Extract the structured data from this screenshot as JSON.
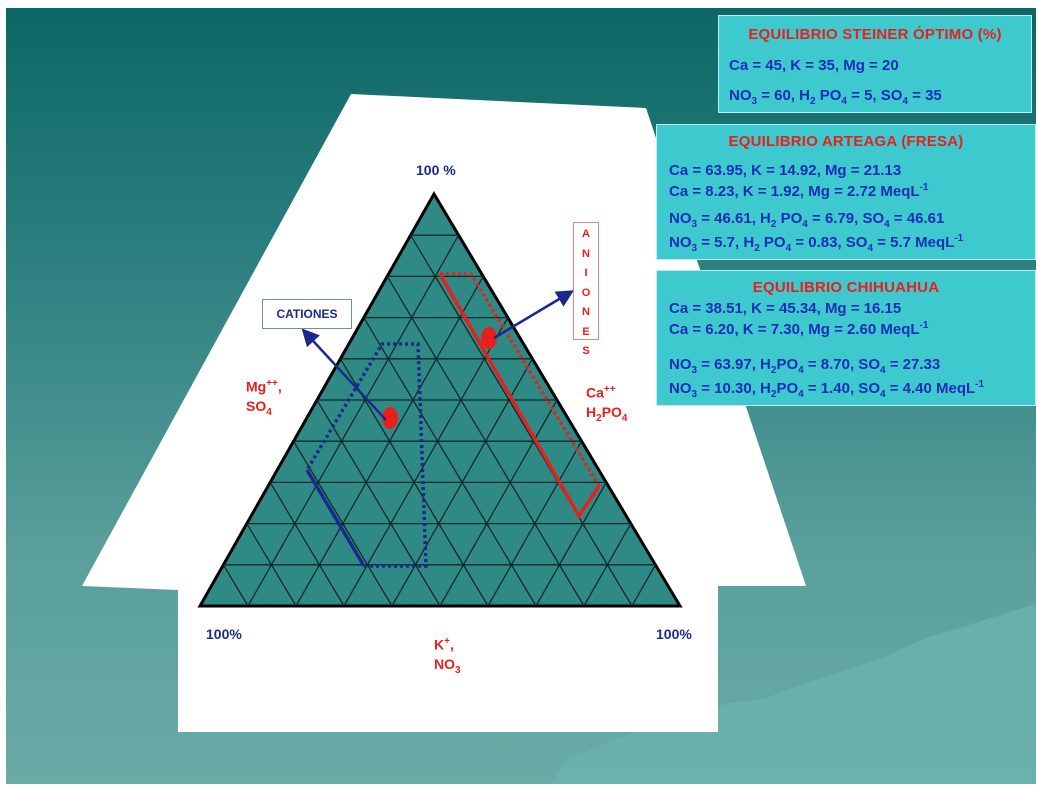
{
  "diagram": {
    "apex_top_label": "100 %",
    "corner_left_label": "100%",
    "corner_right_label": "100%",
    "bottom_label": {
      "base": "K",
      "sup": "+",
      "sep": ",",
      "line2_base": "NO",
      "line2_sub": "3"
    },
    "left_label": {
      "base": "Mg",
      "sup": "++",
      "sep": ",",
      "line2_base": "SO",
      "line2_sub": "4"
    },
    "right_label": {
      "base": "Ca",
      "sup": "++",
      "line2_base": "H",
      "line2_sub": "2",
      "line2_tail": "PO",
      "line2_sub2": "4"
    },
    "cationes_label": "CATIONES",
    "aniones_letters": [
      "A",
      "N",
      "I",
      "O",
      "N",
      "E",
      "S"
    ],
    "colors": {
      "triangle_fill": "#2f8a86",
      "cation_outline": "#1a2a8c",
      "anion_outline": "#e8201c",
      "point": "#e8201c"
    },
    "grid_divisions": 10
  },
  "steiner": {
    "title": "EQUILIBRIO STEINER ÓPTIMO (%)",
    "line1": "Ca = 45, K = 35, Mg = 20",
    "line2": {
      "a": "NO",
      "a_sub": "3",
      "a_val": " = 60,  H",
      "b_sub": "2",
      "b_val": " PO",
      "c_sub": "4",
      "c_val": " = 5,  SO",
      "d_sub": "4",
      "d_val": " = 35"
    }
  },
  "arteaga": {
    "title": "EQUILIBRIO ARTEAGA (FRESA)",
    "line1": "Ca = 63.95,  K = 14.92,  Mg = 21.13",
    "line2": "Ca = 8.23,    K = 1.92,    Mg = 2.72 MeqL",
    "line2_sup": "-1",
    "line3": {
      "a": "NO",
      "a_sub": "3",
      "a_val": " = 46.61,  H",
      "b_sub": "2",
      "b_val": " PO",
      "c_sub": "4",
      "c_val": " = 6.79,  SO",
      "d_sub": "4",
      "d_val": " = 46.61"
    },
    "line4": {
      "a": "NO",
      "a_sub": "3",
      "a_val": " = 5.7,       H",
      "b_sub": "2",
      "b_val": " PO",
      "c_sub": "4",
      "c_val": " = 0.83,  SO",
      "d_sub": "4",
      "d_val": " = 5.7 MeqL",
      "sup": "-1"
    }
  },
  "chihuahua": {
    "title": "EQUILIBRIO CHIHUAHUA",
    "line1": "Ca = 38.51,  K = 45.34,  Mg = 16.15",
    "line2": "Ca = 6.20,    K = 7.30,    Mg = 2.60 MeqL",
    "line2_sup": "-1",
    "line3": {
      "a": "NO",
      "a_sub": "3",
      "a_val": " = 63.97,  H",
      "b_sub": "2",
      "b_val": "PO",
      "c_sub": "4",
      "c_val": " = 8.70,  SO",
      "d_sub": "4",
      "d_val": " = 27.33"
    },
    "line4": {
      "a": "NO",
      "a_sub": "3",
      "a_val": " = 10.30,  H",
      "b_sub": "2",
      "b_val": "PO",
      "c_sub": "4",
      "c_val": " = 1.40,  SO",
      "d_sub": "4",
      "d_val": " = 4.40 MeqL",
      "sup": "-1"
    }
  }
}
